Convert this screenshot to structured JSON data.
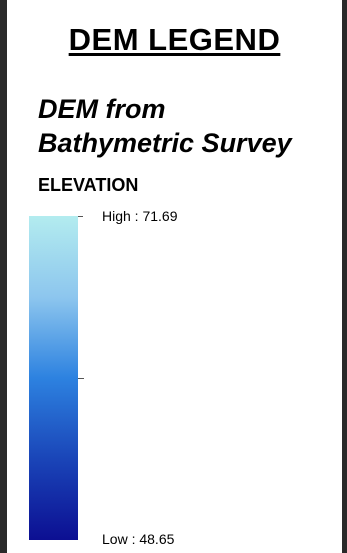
{
  "legend": {
    "title": "DEM LEGEND",
    "layer_name_line1": "DEM from",
    "layer_name_line2": "Bathymetric Survey",
    "field_name": "ELEVATION",
    "high_label": "High : 71.69",
    "low_label": "Low : 48.65",
    "high_value": 71.69,
    "low_value": 48.65,
    "ramp_colors": [
      "#b3ecef",
      "#8dc6ee",
      "#2d82e0",
      "#1a45b8",
      "#0c0f92"
    ]
  }
}
